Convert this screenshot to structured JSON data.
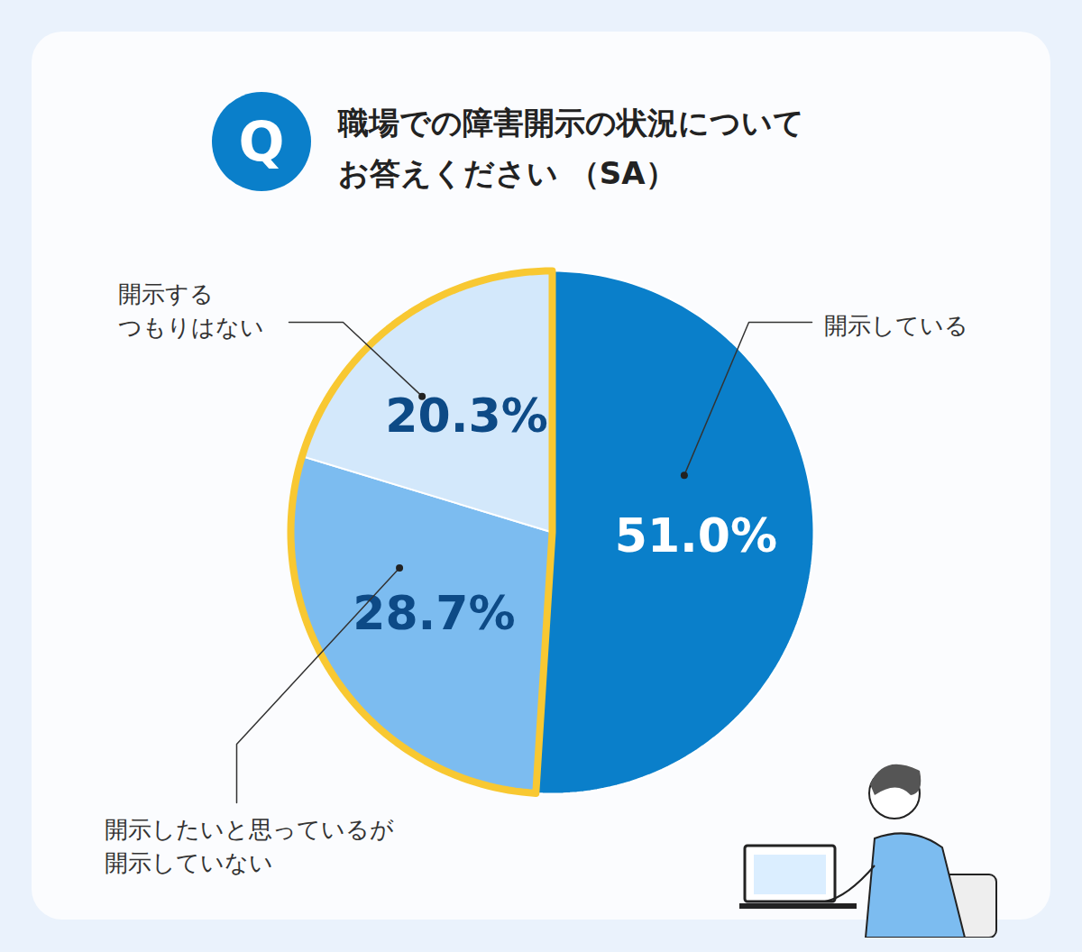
{
  "chart_data": {
    "type": "pie",
    "title": "職場での障害開示の状況についてお答えください （SA）",
    "annotations": [
      "Q"
    ],
    "categories": [
      "開示している",
      "開示したいと思っているが\n開示していない",
      "開示する\nつもりはない"
    ],
    "values": [
      51.0,
      28.7,
      20.3
    ],
    "value_labels": [
      "51.0%",
      "28.7%",
      "20.3%"
    ],
    "colors": [
      "#0a7fca",
      "#7cbcf0",
      "#d3e8fb"
    ],
    "data_labels": true
  }
}
